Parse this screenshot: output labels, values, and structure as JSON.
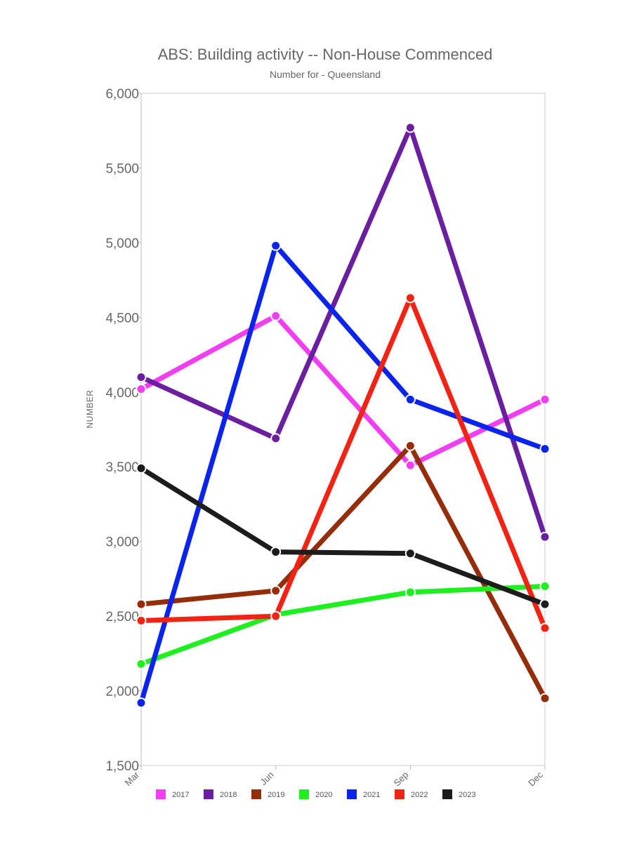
{
  "chart_data": {
    "type": "line",
    "title": "ABS: Building activity -- Non-House Commenced",
    "subtitle": "Number for - Queensland",
    "xlabel": "",
    "ylabel": "NUMBER",
    "categories": [
      "Mar",
      "Jun",
      "Sep",
      "Dec"
    ],
    "ylim": [
      1500,
      6000
    ],
    "yticks": [
      1500,
      2000,
      2500,
      3000,
      3500,
      4000,
      4500,
      5000,
      5500,
      6000
    ],
    "ytick_labels": [
      "1,500",
      "2,000",
      "2,500",
      "3,000",
      "3,500",
      "4,000",
      "4,500",
      "5,000",
      "5,500",
      "6,000"
    ],
    "grid": false,
    "legend_position": "bottom",
    "series": [
      {
        "name": "2017",
        "color": "#f23df2",
        "values": [
          4020,
          4510,
          3510,
          3950
        ]
      },
      {
        "name": "2018",
        "color": "#6a1fa0",
        "values": [
          4100,
          3690,
          5770,
          3030
        ]
      },
      {
        "name": "2019",
        "color": "#952d0a",
        "values": [
          2580,
          2670,
          3640,
          1950
        ]
      },
      {
        "name": "2020",
        "color": "#1eef1e",
        "values": [
          2180,
          2510,
          2660,
          2700
        ]
      },
      {
        "name": "2021",
        "color": "#0b23ee",
        "values": [
          1920,
          4980,
          3950,
          3620
        ]
      },
      {
        "name": "2022",
        "color": "#f42213",
        "values": [
          2470,
          2500,
          4630,
          2420
        ]
      },
      {
        "name": "2023",
        "color": "#1c1c1c",
        "values": [
          3490,
          2930,
          2920,
          2580
        ]
      }
    ]
  }
}
